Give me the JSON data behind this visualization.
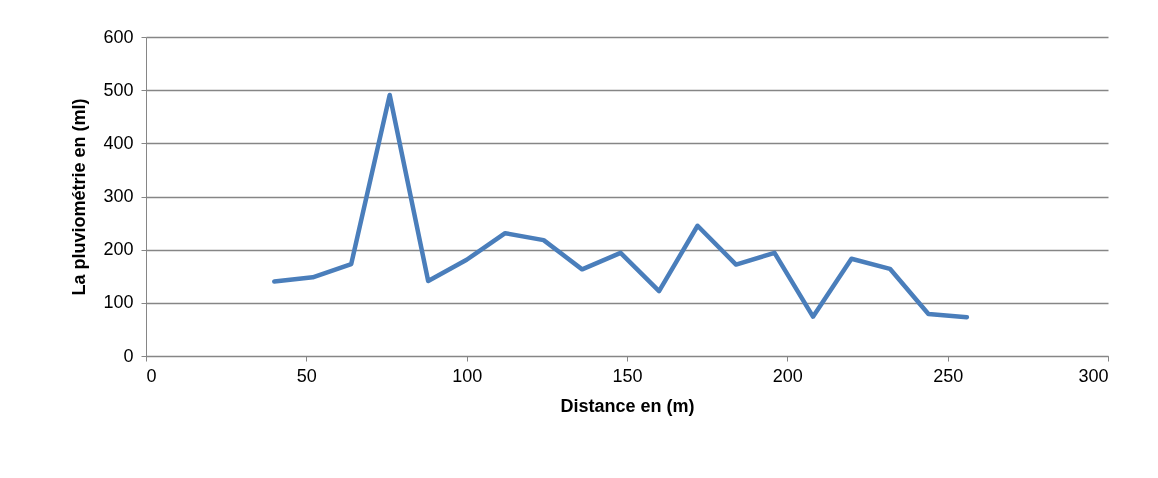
{
  "chart_data": {
    "type": "line",
    "xlabel": "Distance en (m)",
    "ylabel": "La pluviométrie en (ml)",
    "x": [
      40,
      52,
      64,
      76,
      88,
      100,
      112,
      124,
      136,
      148,
      160,
      172,
      184,
      196,
      208,
      220,
      232,
      244,
      256
    ],
    "series": [
      {
        "color": "#4a7ebb",
        "values": [
          140,
          148,
          173,
          491,
          141,
          181,
          231,
          218,
          163,
          194,
          122,
          245,
          172,
          194,
          74,
          183,
          164,
          79,
          73
        ]
      }
    ],
    "xlim": [
      0,
      300
    ],
    "xticks": [
      0,
      50,
      100,
      150,
      200,
      250,
      300
    ],
    "ylim": [
      0,
      600
    ],
    "yticks": [
      0,
      100,
      200,
      300,
      400,
      500,
      600
    ],
    "grid": "y",
    "marker": "none",
    "line_style": "solid"
  }
}
